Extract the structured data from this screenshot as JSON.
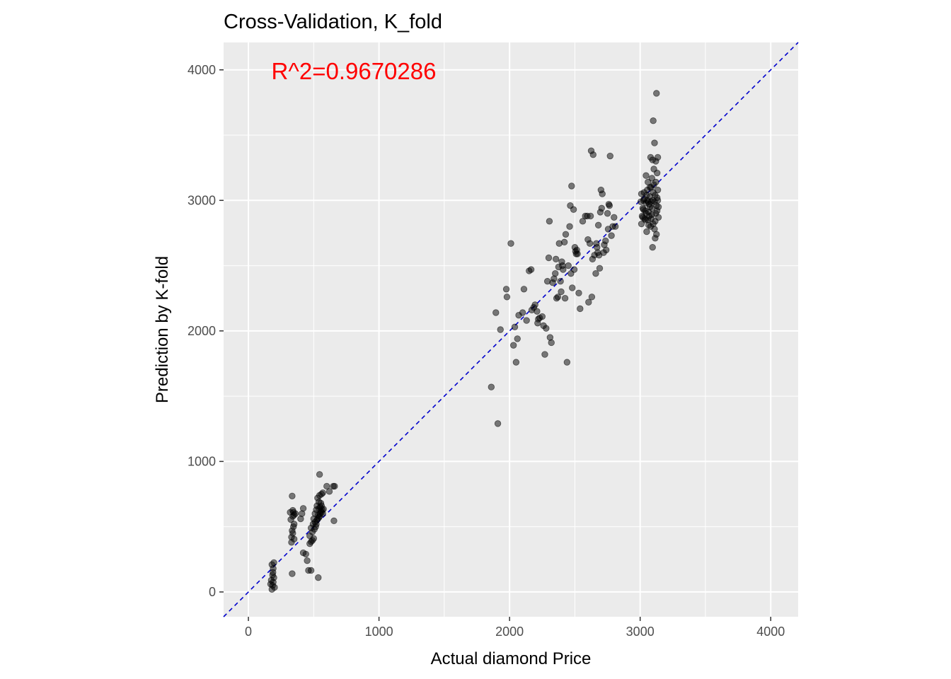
{
  "chart_data": {
    "type": "scatter",
    "title": "Cross-Validation, K_fold",
    "xlabel": "Actual diamond Price",
    "ylabel": "Prediction by K-fold",
    "xlim": [
      -190,
      4210
    ],
    "ylim": [
      -190,
      4210
    ],
    "x_ticks": [
      0,
      1000,
      2000,
      3000,
      4000
    ],
    "y_ticks": [
      0,
      1000,
      2000,
      3000,
      4000
    ],
    "grid": true,
    "reference_line": {
      "slope": 1,
      "intercept": 0,
      "style": "dashed",
      "color": "#0000cc"
    },
    "annotation": {
      "text": "R^2=0.9670286",
      "x": 450,
      "y": 4000,
      "color": "#ff0000"
    },
    "point_color": "#000000",
    "point_opacity": 0.5,
    "points": [
      [
        180,
        20
      ],
      [
        185,
        50
      ],
      [
        190,
        75
      ],
      [
        175,
        90
      ],
      [
        195,
        110
      ],
      [
        185,
        130
      ],
      [
        190,
        180
      ],
      [
        180,
        210
      ],
      [
        195,
        225
      ],
      [
        200,
        35
      ],
      [
        170,
        60
      ],
      [
        188,
        150
      ],
      [
        330,
        420
      ],
      [
        340,
        450
      ],
      [
        335,
        470
      ],
      [
        345,
        500
      ],
      [
        350,
        520
      ],
      [
        325,
        555
      ],
      [
        340,
        580
      ],
      [
        350,
        590
      ],
      [
        360,
        600
      ],
      [
        345,
        610
      ],
      [
        340,
        625
      ],
      [
        335,
        735
      ],
      [
        330,
        380
      ],
      [
        350,
        405
      ],
      [
        335,
        140
      ],
      [
        320,
        610
      ],
      [
        400,
        560
      ],
      [
        410,
        600
      ],
      [
        420,
        640
      ],
      [
        440,
        290
      ],
      [
        450,
        240
      ],
      [
        460,
        165
      ],
      [
        480,
        165
      ],
      [
        420,
        300
      ],
      [
        470,
        370
      ],
      [
        480,
        385
      ],
      [
        490,
        395
      ],
      [
        500,
        410
      ],
      [
        470,
        430
      ],
      [
        490,
        460
      ],
      [
        505,
        480
      ],
      [
        515,
        500
      ],
      [
        520,
        520
      ],
      [
        510,
        535
      ],
      [
        525,
        550
      ],
      [
        530,
        560
      ],
      [
        500,
        560
      ],
      [
        540,
        570
      ],
      [
        545,
        580
      ],
      [
        535,
        590
      ],
      [
        550,
        600
      ],
      [
        560,
        610
      ],
      [
        555,
        620
      ],
      [
        565,
        630
      ],
      [
        540,
        640
      ],
      [
        550,
        650
      ],
      [
        560,
        660
      ],
      [
        555,
        680
      ],
      [
        530,
        720
      ],
      [
        545,
        740
      ],
      [
        560,
        750
      ],
      [
        570,
        760
      ],
      [
        540,
        690
      ],
      [
        520,
        630
      ],
      [
        535,
        110
      ],
      [
        545,
        900
      ],
      [
        575,
        635
      ],
      [
        570,
        600
      ],
      [
        480,
        490
      ],
      [
        495,
        520
      ],
      [
        510,
        600
      ],
      [
        525,
        660
      ],
      [
        600,
        810
      ],
      [
        650,
        810
      ],
      [
        660,
        810
      ],
      [
        655,
        545
      ],
      [
        620,
        770
      ],
      [
        1860,
        1570
      ],
      [
        1910,
        1290
      ],
      [
        1895,
        2140
      ],
      [
        1930,
        2010
      ],
      [
        1975,
        2320
      ],
      [
        1980,
        2260
      ],
      [
        2010,
        2670
      ],
      [
        2030,
        1890
      ],
      [
        2040,
        2030
      ],
      [
        2050,
        1760
      ],
      [
        2060,
        1940
      ],
      [
        2070,
        2120
      ],
      [
        2100,
        2140
      ],
      [
        2110,
        2320
      ],
      [
        2130,
        2080
      ],
      [
        2150,
        2460
      ],
      [
        2165,
        2470
      ],
      [
        2170,
        2160
      ],
      [
        2185,
        2180
      ],
      [
        2195,
        2200
      ],
      [
        2210,
        2150
      ],
      [
        2215,
        2060
      ],
      [
        2220,
        2090
      ],
      [
        2230,
        2100
      ],
      [
        2250,
        2110
      ],
      [
        2260,
        2040
      ],
      [
        2270,
        1820
      ],
      [
        2280,
        2020
      ],
      [
        2290,
        2380
      ],
      [
        2300,
        2560
      ],
      [
        2305,
        2840
      ],
      [
        2310,
        1950
      ],
      [
        2320,
        1910
      ],
      [
        2330,
        2370
      ],
      [
        2340,
        2400
      ],
      [
        2350,
        2440
      ],
      [
        2355,
        2550
      ],
      [
        2360,
        2250
      ],
      [
        2370,
        2260
      ],
      [
        2375,
        2490
      ],
      [
        2380,
        2670
      ],
      [
        2390,
        2380
      ],
      [
        2395,
        2300
      ],
      [
        2400,
        2530
      ],
      [
        2405,
        2500
      ],
      [
        2410,
        2470
      ],
      [
        2420,
        2680
      ],
      [
        2425,
        2250
      ],
      [
        2430,
        2740
      ],
      [
        2440,
        1760
      ],
      [
        2450,
        2500
      ],
      [
        2460,
        2800
      ],
      [
        2465,
        2960
      ],
      [
        2470,
        2440
      ],
      [
        2475,
        3110
      ],
      [
        2480,
        2330
      ],
      [
        2490,
        2930
      ],
      [
        2495,
        2470
      ],
      [
        2500,
        2640
      ],
      [
        2505,
        2610
      ],
      [
        2510,
        2590
      ],
      [
        2515,
        2620
      ],
      [
        2520,
        2590
      ],
      [
        2530,
        2290
      ],
      [
        2540,
        2170
      ],
      [
        2560,
        2840
      ],
      [
        2580,
        2880
      ],
      [
        2595,
        2880
      ],
      [
        2600,
        2700
      ],
      [
        2605,
        2220
      ],
      [
        2615,
        2670
      ],
      [
        2620,
        2880
      ],
      [
        2625,
        3380
      ],
      [
        2630,
        2260
      ],
      [
        2635,
        2550
      ],
      [
        2640,
        3350
      ],
      [
        2650,
        2580
      ],
      [
        2660,
        2440
      ],
      [
        2665,
        2670
      ],
      [
        2670,
        2640
      ],
      [
        2675,
        2600
      ],
      [
        2680,
        2810
      ],
      [
        2685,
        2580
      ],
      [
        2690,
        2480
      ],
      [
        2695,
        2910
      ],
      [
        2700,
        3080
      ],
      [
        2705,
        2940
      ],
      [
        2710,
        3050
      ],
      [
        2720,
        2600
      ],
      [
        2725,
        2660
      ],
      [
        2735,
        2690
      ],
      [
        2740,
        2620
      ],
      [
        2750,
        2900
      ],
      [
        2755,
        2780
      ],
      [
        2760,
        2970
      ],
      [
        2765,
        2960
      ],
      [
        2770,
        3340
      ],
      [
        2780,
        2730
      ],
      [
        2790,
        2800
      ],
      [
        2800,
        2870
      ],
      [
        2810,
        2800
      ],
      [
        3010,
        2820
      ],
      [
        3015,
        2880
      ],
      [
        3020,
        2940
      ],
      [
        3025,
        3000
      ],
      [
        3030,
        3060
      ],
      [
        3035,
        2860
      ],
      [
        3040,
        2920
      ],
      [
        3045,
        2980
      ],
      [
        3050,
        3040
      ],
      [
        3055,
        3080
      ],
      [
        3060,
        2850
      ],
      [
        3065,
        2910
      ],
      [
        3070,
        2970
      ],
      [
        3075,
        3030
      ],
      [
        3080,
        2800
      ],
      [
        3085,
        2860
      ],
      [
        3090,
        2940
      ],
      [
        3095,
        3000
      ],
      [
        3100,
        3060
      ],
      [
        3105,
        3120
      ],
      [
        3110,
        2780
      ],
      [
        3115,
        2840
      ],
      [
        3120,
        2900
      ],
      [
        3125,
        2960
      ],
      [
        3130,
        3020
      ],
      [
        3135,
        3080
      ],
      [
        3140,
        2870
      ],
      [
        3010,
        3050
      ],
      [
        3025,
        2930
      ],
      [
        3040,
        2850
      ],
      [
        3055,
        3000
      ],
      [
        3070,
        2880
      ],
      [
        3085,
        3100
      ],
      [
        3100,
        2820
      ],
      [
        3115,
        3040
      ],
      [
        3130,
        2920
      ],
      [
        3045,
        3190
      ],
      [
        3060,
        3140
      ],
      [
        3075,
        3100
      ],
      [
        3090,
        3170
      ],
      [
        3105,
        3240
      ],
      [
        3120,
        3300
      ],
      [
        3135,
        3330
      ],
      [
        3080,
        3330
      ],
      [
        3095,
        3310
      ],
      [
        3110,
        3440
      ],
      [
        3100,
        3610
      ],
      [
        3125,
        3820
      ],
      [
        3130,
        3210
      ],
      [
        3120,
        3140
      ],
      [
        3095,
        2640
      ],
      [
        3115,
        2710
      ],
      [
        3125,
        2740
      ],
      [
        3050,
        2760
      ],
      [
        3065,
        2810
      ],
      [
        3140,
        2950
      ],
      [
        3005,
        2990
      ],
      [
        3030,
        3010
      ],
      [
        3020,
        2870
      ],
      [
        3075,
        2950
      ],
      [
        3090,
        2890
      ],
      [
        3135,
        3000
      ],
      [
        3110,
        2990
      ],
      [
        3060,
        2990
      ],
      [
        3045,
        2900
      ],
      [
        3085,
        2990
      ]
    ]
  }
}
